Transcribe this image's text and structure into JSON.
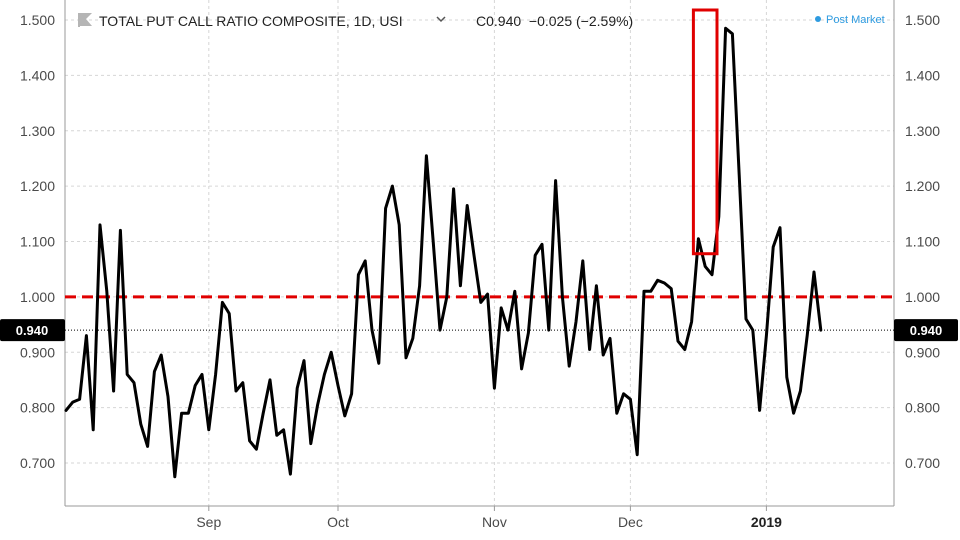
{
  "header": {
    "symbol_icon": "flag-icon",
    "title": "TOTAL PUT CALL RATIO COMPOSITE, 1D, USI",
    "dropdown_icon": "chevron-down-icon",
    "quote": "C0.940  −0.025 (−2.59%)",
    "post_market": "Post Market"
  },
  "colors": {
    "line": "#000000",
    "threshold": "#e00000",
    "highlight": "#e00000",
    "badge": "#000000",
    "grid": "#d6d6d6",
    "post_market_dot": "#2e9be0"
  },
  "chart_data": {
    "type": "line",
    "title": "TOTAL PUT CALL RATIO COMPOSITE, 1D, USI",
    "xlabel": "",
    "ylabel": "",
    "ylim": [
      0.64,
      1.52
    ],
    "y_ticks": [
      "0.700",
      "0.800",
      "0.900",
      "1.000",
      "1.100",
      "1.200",
      "1.300",
      "1.400",
      "1.500"
    ],
    "x_ticks": [
      {
        "label": "Sep",
        "index": 21
      },
      {
        "label": "Oct",
        "index": 40
      },
      {
        "label": "Nov",
        "index": 63
      },
      {
        "label": "Dec",
        "index": 83
      },
      {
        "label": "2019",
        "index": 103,
        "bold": true
      }
    ],
    "grid": true,
    "last_value": "0.940",
    "threshold": 1.0,
    "highlight_range": [
      93,
      95
    ],
    "series": [
      {
        "values": [
          0.795,
          0.81,
          0.815,
          0.93,
          0.76,
          1.13,
          1.01,
          0.83,
          1.12,
          0.86,
          0.845,
          0.77,
          0.73,
          0.865,
          0.895,
          0.82,
          0.675,
          0.79,
          0.79,
          0.84,
          0.86,
          0.76,
          0.86,
          0.99,
          0.97,
          0.83,
          0.845,
          0.74,
          0.725,
          0.79,
          0.85,
          0.75,
          0.76,
          0.68,
          0.835,
          0.885,
          0.735,
          0.805,
          0.86,
          0.9,
          0.84,
          0.785,
          0.825,
          1.04,
          1.065,
          0.94,
          0.88,
          1.16,
          1.2,
          1.13,
          0.89,
          0.925,
          1.02,
          1.255,
          1.1,
          0.94,
          1.0,
          1.195,
          1.02,
          1.165,
          1.075,
          0.99,
          1.005,
          0.835,
          0.98,
          0.94,
          1.01,
          0.87,
          0.935,
          1.075,
          1.095,
          0.94,
          1.21,
          1.0,
          0.875,
          0.955,
          1.065,
          0.905,
          1.02,
          0.895,
          0.925,
          0.79,
          0.825,
          0.815,
          0.715,
          1.01,
          1.01,
          1.03,
          1.025,
          1.015,
          0.92,
          0.905,
          0.955,
          1.105,
          1.055,
          1.04,
          1.145,
          1.485,
          1.475,
          1.22,
          0.96,
          0.94,
          0.795,
          0.93,
          1.09,
          1.125,
          0.855,
          0.79,
          0.83,
          0.93,
          1.045,
          0.94
        ]
      }
    ]
  }
}
